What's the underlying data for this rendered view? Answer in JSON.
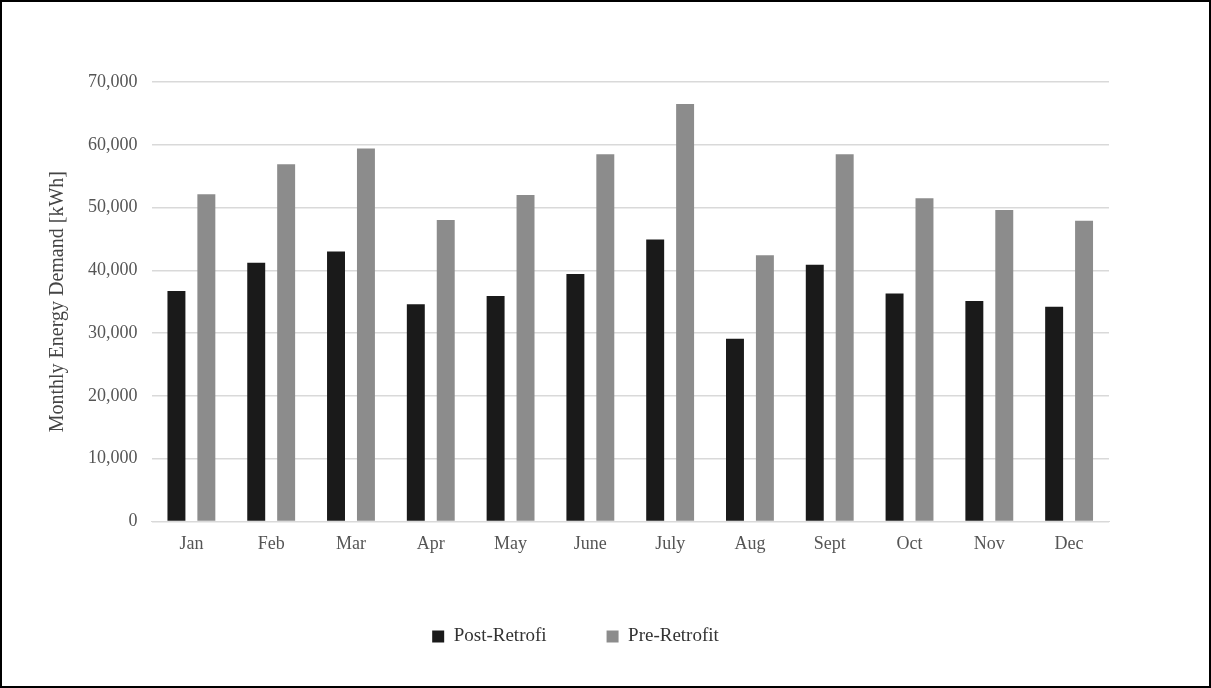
{
  "chart_data": {
    "type": "bar",
    "ylabel": "Monthly Energy Demand [kWh]",
    "categories": [
      "Jan",
      "Feb",
      "Mar",
      "Apr",
      "May",
      "June",
      "July",
      "Aug",
      "Sept",
      "Oct",
      "Nov",
      "Dec"
    ],
    "series": [
      {
        "name": "Post-Retrofi",
        "color": "#1a1a1a",
        "values": [
          36700,
          41200,
          43000,
          34600,
          35900,
          39400,
          44900,
          29100,
          40900,
          36300,
          35100,
          34200
        ]
      },
      {
        "name": "Pre-Retrofit",
        "color": "#8c8c8c",
        "values": [
          52100,
          56900,
          59400,
          48000,
          52000,
          58500,
          66500,
          42400,
          58500,
          51500,
          49600,
          47900
        ]
      }
    ],
    "ylim": [
      0,
      70000
    ],
    "yticks": [
      {
        "value": 0,
        "label": "0"
      },
      {
        "value": 10000,
        "label": "10,000"
      },
      {
        "value": 20000,
        "label": "20,000"
      },
      {
        "value": 30000,
        "label": "30,000"
      },
      {
        "value": 40000,
        "label": "40,000"
      },
      {
        "value": 50000,
        "label": "50,000"
      },
      {
        "value": 60000,
        "label": "60,000"
      },
      {
        "value": 70000,
        "label": "70,000"
      }
    ],
    "grid": "y",
    "legend": "bottom"
  }
}
